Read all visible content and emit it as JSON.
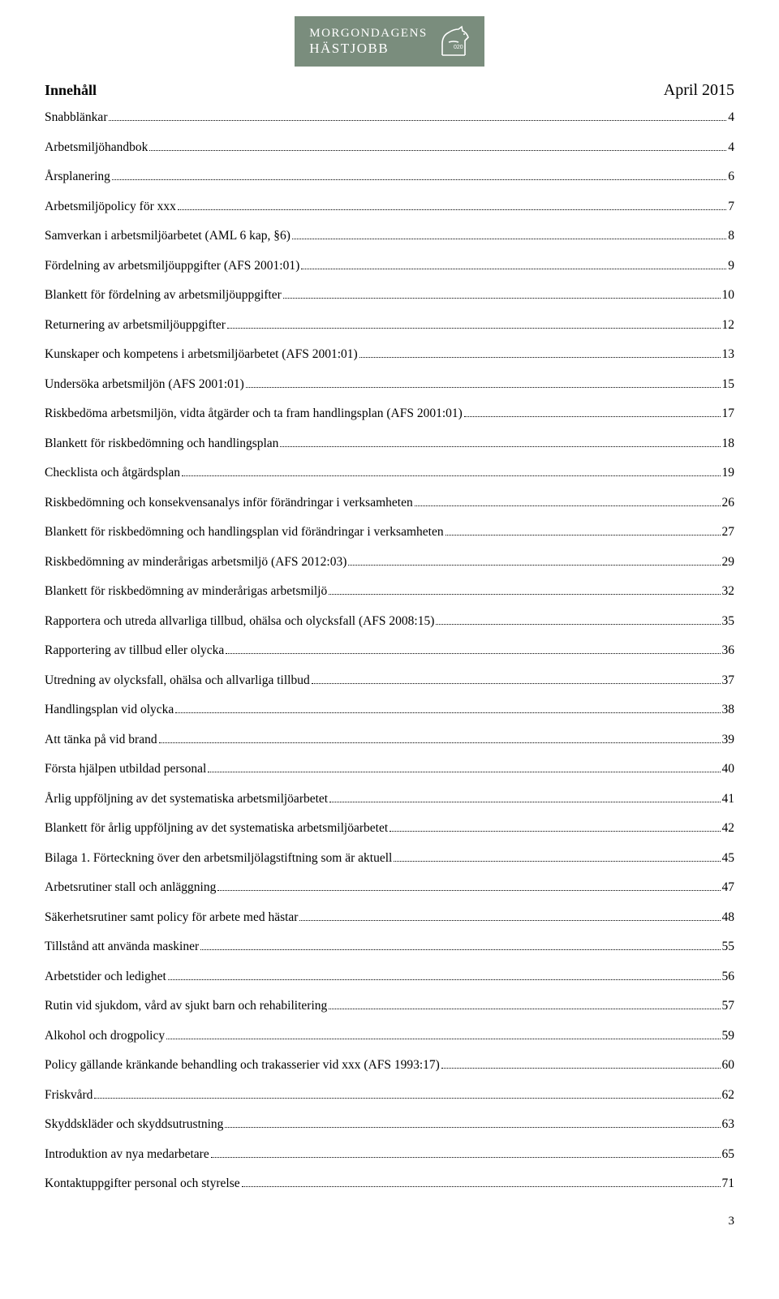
{
  "logo": {
    "line1": "MORGONDAGENS",
    "line2": "HÄSTJOBB",
    "bg_color": "#7a8d7d",
    "text_color": "#ffffff"
  },
  "heading": "Innehåll",
  "date": "April 2015",
  "toc": [
    {
      "label": "Snabblänkar",
      "page": "4"
    },
    {
      "label": "Arbetsmiljöhandbok",
      "page": "4"
    },
    {
      "label": "Årsplanering",
      "page": "6"
    },
    {
      "label": "Arbetsmiljöpolicy för xxx",
      "page": "7"
    },
    {
      "label": "Samverkan i arbetsmiljöarbetet (AML 6 kap, §6)",
      "page": "8"
    },
    {
      "label": "Fördelning av arbetsmiljöuppgifter (AFS 2001:01)",
      "page": "9"
    },
    {
      "label": "Blankett för fördelning av arbetsmiljöuppgifter",
      "page": "10"
    },
    {
      "label": "Returnering av arbetsmiljöuppgifter",
      "page": "12"
    },
    {
      "label": "Kunskaper och kompetens i arbetsmiljöarbetet (AFS 2001:01)",
      "page": "13"
    },
    {
      "label": "Undersöka arbetsmiljön (AFS 2001:01)",
      "page": "15"
    },
    {
      "label": "Riskbedöma arbetsmiljön, vidta åtgärder och ta fram handlingsplan (AFS 2001:01)",
      "page": "17"
    },
    {
      "label": "Blankett för riskbedömning och handlingsplan",
      "page": "18"
    },
    {
      "label": "Checklista och åtgärdsplan",
      "page": "19"
    },
    {
      "label": "Riskbedömning och konsekvensanalys inför förändringar i verksamheten",
      "page": "26"
    },
    {
      "label": "Blankett för riskbedömning och handlingsplan vid förändringar i verksamheten",
      "page": "27"
    },
    {
      "label": "Riskbedömning av minderårigas arbetsmiljö (AFS 2012:03)",
      "page": "29"
    },
    {
      "label": "Blankett för riskbedömning av minderårigas arbetsmiljö",
      "page": "32"
    },
    {
      "label": "Rapportera och utreda allvarliga tillbud, ohälsa och olycksfall (AFS 2008:15)",
      "page": "35"
    },
    {
      "label": "Rapportering av tillbud eller olycka",
      "page": "36"
    },
    {
      "label": "Utredning av olycksfall, ohälsa och allvarliga tillbud",
      "page": "37"
    },
    {
      "label": "Handlingsplan vid olycka",
      "page": "38"
    },
    {
      "label": "Att tänka på vid brand",
      "page": "39"
    },
    {
      "label": "Första hjälpen utbildad personal",
      "page": "40"
    },
    {
      "label": "Årlig uppföljning av det systematiska arbetsmiljöarbetet",
      "page": "41"
    },
    {
      "label": "Blankett för årlig uppföljning av det systematiska arbetsmiljöarbetet",
      "page": "42"
    },
    {
      "label": "Bilaga 1. Förteckning över den arbetsmiljölagstiftning som är aktuell",
      "page": "45"
    },
    {
      "label": "Arbetsrutiner stall och anläggning",
      "page": "47"
    },
    {
      "label": "Säkerhetsrutiner samt policy för arbete med hästar",
      "page": "48"
    },
    {
      "label": "Tillstånd att använda maskiner",
      "page": "55"
    },
    {
      "label": "Arbetstider och ledighet",
      "page": "56"
    },
    {
      "label": "Rutin vid sjukdom, vård av sjukt barn och rehabilitering",
      "page": "57"
    },
    {
      "label": "Alkohol och drogpolicy",
      "page": "59"
    },
    {
      "label": "Policy gällande kränkande behandling och trakasserier vid xxx (AFS 1993:17)",
      "page": "60"
    },
    {
      "label": "Friskvård",
      "page": "62"
    },
    {
      "label": "Skyddskläder och skyddsutrustning",
      "page": "63"
    },
    {
      "label": "Introduktion av nya medarbetare",
      "page": "65"
    },
    {
      "label": "Kontaktuppgifter personal och styrelse",
      "page": "71"
    }
  ],
  "page_number": "3"
}
